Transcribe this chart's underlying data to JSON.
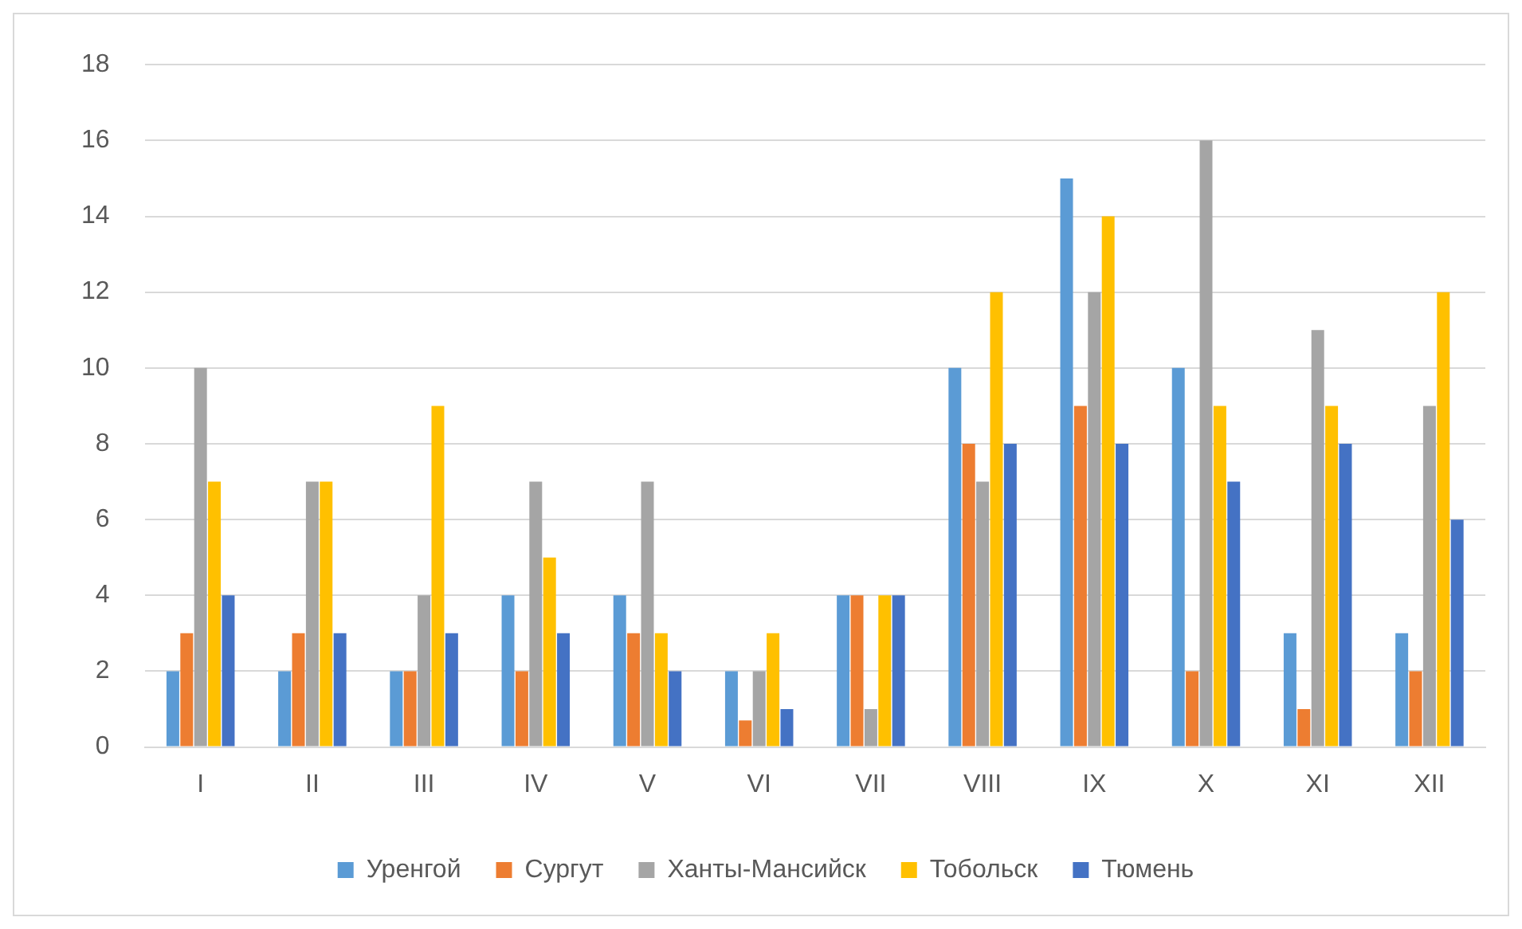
{
  "chart_data": {
    "type": "bar",
    "categories": [
      "I",
      "II",
      "III",
      "IV",
      "V",
      "VI",
      "VII",
      "VIII",
      "IX",
      "X",
      "XI",
      "XII"
    ],
    "series": [
      {
        "name": "Уренгой",
        "color": "#5b9bd5",
        "values": [
          2,
          2,
          2,
          4,
          4,
          2,
          4,
          10,
          15,
          10,
          3,
          3
        ]
      },
      {
        "name": "Сургут",
        "color": "#ed7d31",
        "values": [
          3,
          3,
          2,
          2,
          3,
          0.7,
          4,
          8,
          9,
          2,
          1,
          2
        ]
      },
      {
        "name": "Ханты-Мансийск",
        "color": "#a5a5a5",
        "values": [
          10,
          7,
          4,
          7,
          7,
          2,
          1,
          7,
          12,
          16,
          11,
          9
        ]
      },
      {
        "name": "Тобольск",
        "color": "#ffc000",
        "values": [
          7,
          7,
          9,
          5,
          3,
          3,
          4,
          12,
          14,
          9,
          9,
          12
        ]
      },
      {
        "name": "Тюмень",
        "color": "#4472c4",
        "values": [
          4,
          3,
          3,
          3,
          2,
          1,
          4,
          8,
          8,
          7,
          8,
          6
        ]
      }
    ],
    "ylim": [
      0,
      18
    ],
    "yticks": [
      0,
      2,
      4,
      6,
      8,
      10,
      12,
      14,
      16,
      18
    ],
    "grid": "y",
    "legend": "bottom"
  }
}
